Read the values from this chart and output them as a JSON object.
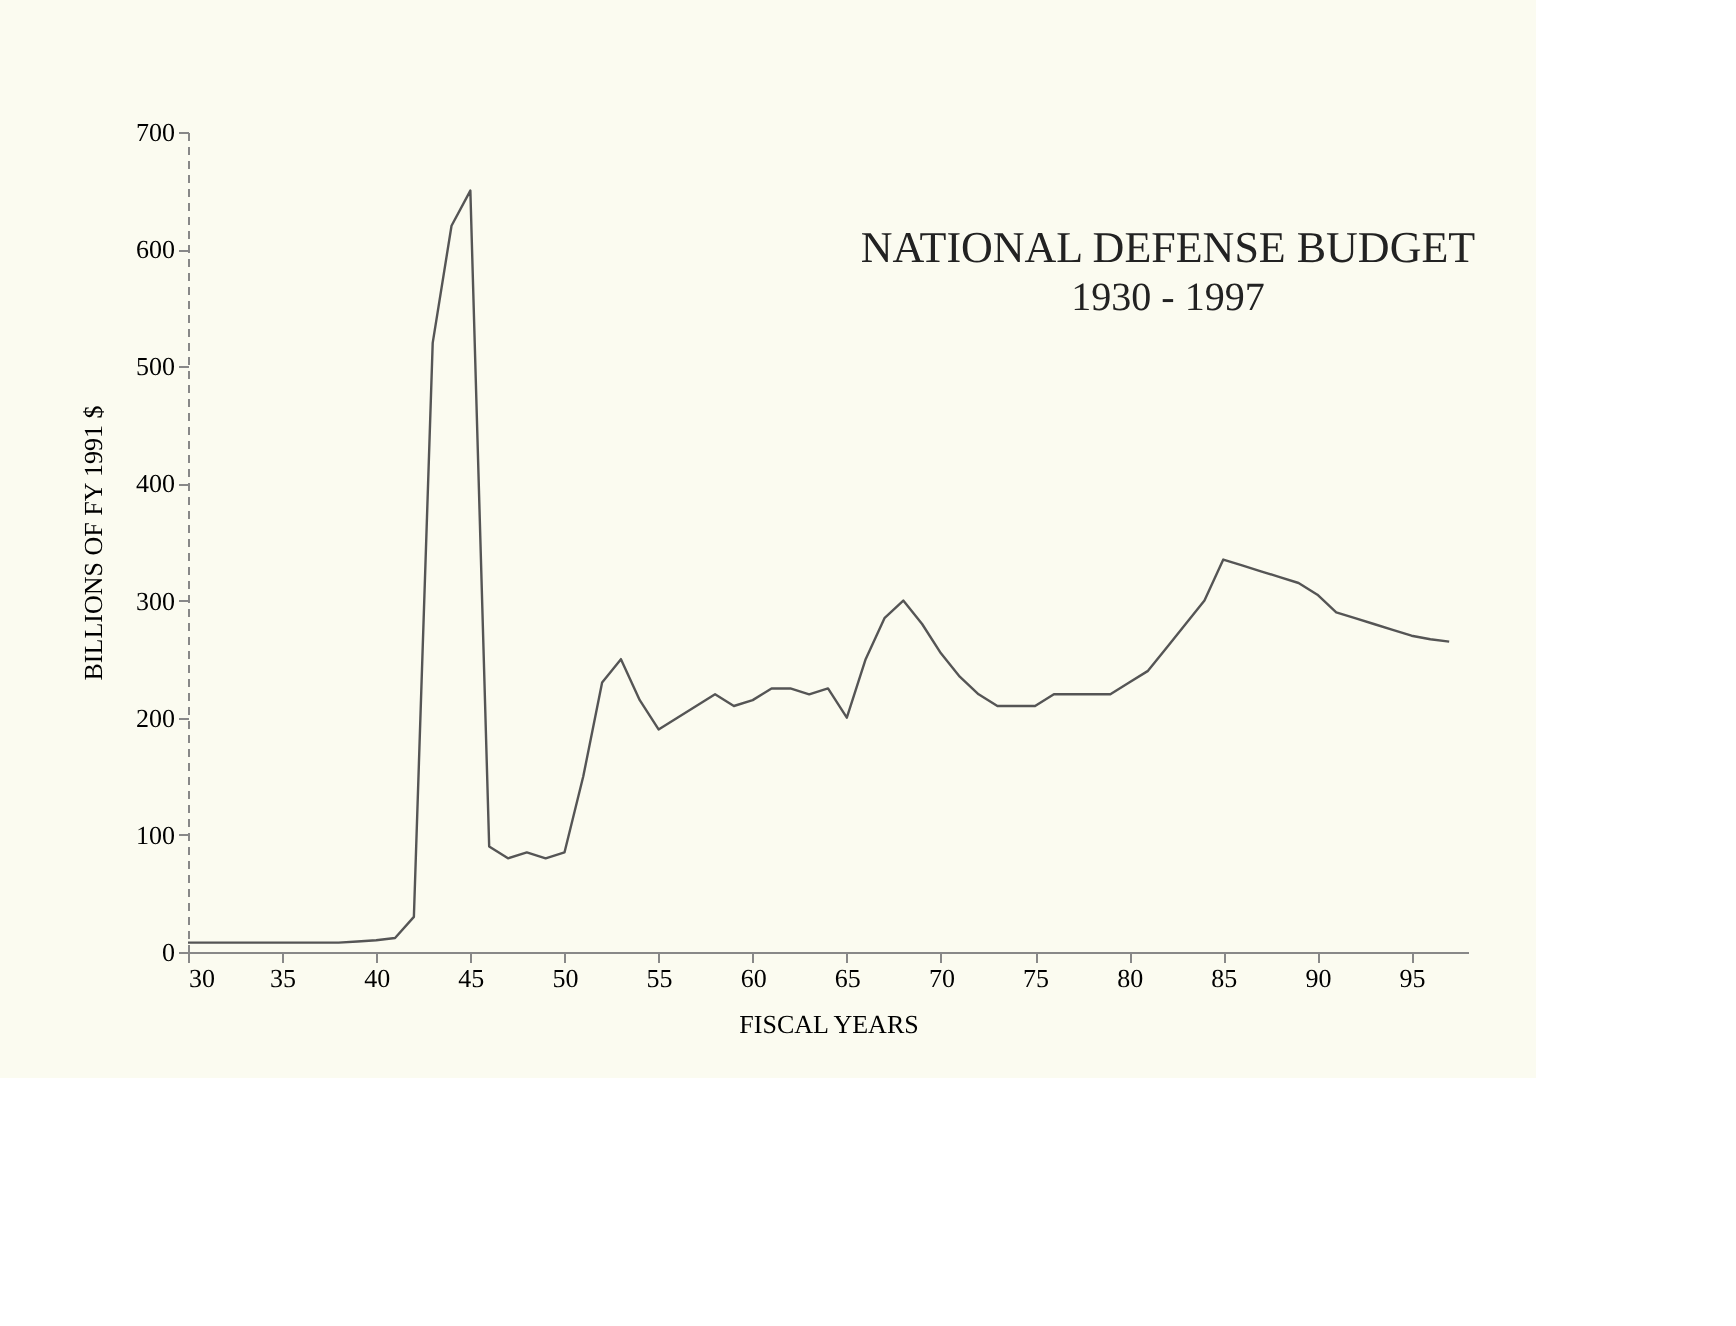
{
  "chart_data": {
    "type": "line",
    "title": "NATIONAL DEFENSE BUDGET",
    "subtitle": "1930 - 1997",
    "xlabel": "FISCAL YEARS",
    "ylabel": "BILLIONS OF FY 1991 $",
    "x": [
      30,
      31,
      32,
      33,
      34,
      35,
      36,
      37,
      38,
      39,
      40,
      41,
      42,
      43,
      44,
      45,
      46,
      47,
      48,
      49,
      50,
      51,
      52,
      53,
      54,
      55,
      56,
      57,
      58,
      59,
      60,
      61,
      62,
      63,
      64,
      65,
      66,
      67,
      68,
      69,
      70,
      71,
      72,
      73,
      74,
      75,
      76,
      77,
      78,
      79,
      80,
      81,
      82,
      83,
      84,
      85,
      86,
      87,
      88,
      89,
      90,
      91,
      92,
      93,
      94,
      95,
      96,
      97
    ],
    "series": [
      {
        "color": "#555555",
        "values": [
          8,
          8,
          8,
          8,
          8,
          8,
          8,
          8,
          8,
          9,
          10,
          12,
          30,
          520,
          620,
          650,
          90,
          80,
          85,
          80,
          85,
          150,
          230,
          250,
          215,
          190,
          200,
          210,
          220,
          210,
          215,
          225,
          225,
          220,
          225,
          200,
          250,
          285,
          300,
          280,
          255,
          235,
          220,
          210,
          210,
          210,
          220,
          220,
          220,
          220,
          230,
          240,
          260,
          280,
          300,
          335,
          330,
          325,
          320,
          315,
          305,
          290,
          285,
          280,
          275,
          270,
          267,
          265
        ]
      }
    ],
    "xlim": [
      30,
      98
    ],
    "ylim": [
      0,
      700
    ],
    "xticks": [
      30,
      35,
      40,
      45,
      50,
      55,
      60,
      65,
      70,
      75,
      80,
      85,
      90,
      95
    ],
    "yticks": [
      0,
      100,
      200,
      300,
      400,
      500,
      600,
      700
    ],
    "grid": false,
    "marker": "none",
    "line_style": "solid"
  }
}
